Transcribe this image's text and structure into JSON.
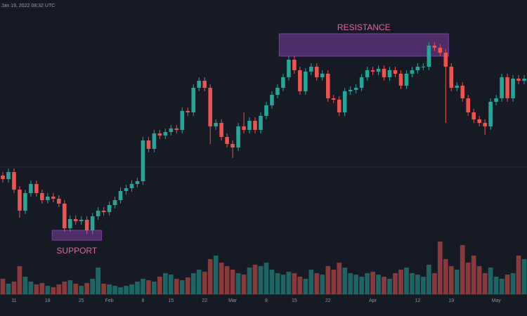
{
  "chart_data": {
    "type": "candlestick",
    "title": "Jan 19, 2022 08:32 UTC",
    "up_color": "#26a69a",
    "down_color": "#ef5350",
    "ylim": [
      0,
      450
    ],
    "volume_lim": [
      0,
      100
    ],
    "xlim": [
      -0.5,
      93.5
    ],
    "xticks": [
      {
        "value": 2,
        "label": "11"
      },
      {
        "value": 8,
        "label": "18"
      },
      {
        "value": 14,
        "label": "25"
      },
      {
        "value": 19,
        "label": "Feb"
      },
      {
        "value": 25,
        "label": "8"
      },
      {
        "value": 30,
        "label": "15"
      },
      {
        "value": 36,
        "label": "22"
      },
      {
        "value": 41,
        "label": "Mar"
      },
      {
        "value": 47,
        "label": "8"
      },
      {
        "value": 52,
        "label": "15"
      },
      {
        "value": 58,
        "label": "22"
      },
      {
        "value": 66,
        "label": "Apr"
      },
      {
        "value": 74,
        "label": "12"
      },
      {
        "value": 80,
        "label": "19"
      },
      {
        "value": 88,
        "label": "May"
      }
    ],
    "zones": [
      {
        "label": "RESISTANCE",
        "color": "#7b3fa0",
        "x": [
          49.3,
          79.5
        ],
        "y": [
          370,
          402
        ]
      },
      {
        "label": "SUPPORT",
        "color": "#7b3fa0",
        "x": [
          8.8,
          17.6
        ],
        "y": [
          108,
          122
        ]
      }
    ],
    "open": [
      200,
      195,
      205,
      180,
      150,
      175,
      188,
      175,
      165,
      170,
      167,
      160,
      125,
      138,
      135,
      137,
      122,
      142,
      150,
      148,
      158,
      165,
      178,
      182,
      188,
      192,
      250,
      238,
      260,
      257,
      262,
      267,
      265,
      292,
      290,
      325,
      335,
      325,
      270,
      275,
      255,
      245,
      240,
      270,
      265,
      278,
      265,
      285,
      300,
      315,
      325,
      340,
      365,
      350,
      320,
      348,
      355,
      340,
      345,
      310,
      308,
      290,
      320,
      322,
      325,
      340,
      350,
      348,
      352,
      340,
      350,
      345,
      328,
      345,
      350,
      355,
      355,
      385,
      382,
      375,
      355,
      325,
      328,
      310,
      290,
      280,
      275,
      270,
      305,
      310,
      340,
      310,
      338,
      335
    ],
    "high": [
      205,
      210,
      210,
      185,
      180,
      193,
      193,
      180,
      175,
      175,
      172,
      165,
      143,
      143,
      142,
      142,
      147,
      155,
      155,
      163,
      170,
      183,
      187,
      193,
      197,
      255,
      255,
      265,
      265,
      267,
      272,
      272,
      297,
      297,
      330,
      340,
      340,
      330,
      280,
      280,
      260,
      250,
      275,
      290,
      283,
      283,
      290,
      305,
      320,
      330,
      345,
      370,
      370,
      355,
      353,
      360,
      360,
      350,
      350,
      315,
      313,
      325,
      327,
      330,
      345,
      355,
      355,
      357,
      357,
      355,
      355,
      350,
      350,
      355,
      360,
      360,
      390,
      390,
      387,
      380,
      360,
      333,
      333,
      315,
      295,
      285,
      280,
      310,
      315,
      345,
      345,
      343,
      343,
      343
    ],
    "low": [
      190,
      190,
      175,
      140,
      145,
      170,
      170,
      160,
      160,
      162,
      155,
      120,
      120,
      130,
      130,
      117,
      117,
      137,
      143,
      143,
      153,
      160,
      173,
      177,
      183,
      187,
      233,
      233,
      252,
      252,
      257,
      260,
      260,
      285,
      285,
      320,
      320,
      245,
      265,
      250,
      240,
      225,
      235,
      260,
      260,
      260,
      260,
      280,
      295,
      310,
      320,
      335,
      345,
      315,
      315,
      343,
      335,
      335,
      305,
      303,
      285,
      285,
      315,
      317,
      320,
      335,
      343,
      343,
      335,
      335,
      340,
      323,
      323,
      340,
      345,
      350,
      350,
      377,
      370,
      275,
      320,
      320,
      305,
      285,
      275,
      270,
      258,
      265,
      300,
      305,
      305,
      305,
      330,
      330
    ],
    "close": [
      195,
      205,
      180,
      150,
      175,
      188,
      175,
      165,
      170,
      167,
      160,
      125,
      138,
      135,
      137,
      122,
      142,
      150,
      148,
      158,
      165,
      178,
      182,
      188,
      192,
      250,
      238,
      260,
      257,
      262,
      267,
      265,
      292,
      290,
      325,
      335,
      325,
      270,
      275,
      255,
      245,
      240,
      270,
      265,
      278,
      265,
      285,
      300,
      315,
      325,
      340,
      365,
      350,
      320,
      348,
      355,
      340,
      345,
      310,
      308,
      290,
      320,
      322,
      325,
      340,
      350,
      348,
      352,
      340,
      350,
      345,
      328,
      345,
      350,
      355,
      355,
      385,
      382,
      375,
      355,
      325,
      328,
      310,
      290,
      280,
      275,
      270,
      305,
      310,
      340,
      310,
      338,
      335,
      338
    ],
    "volume": [
      22,
      15,
      18,
      40,
      25,
      18,
      14,
      16,
      12,
      10,
      14,
      18,
      20,
      15,
      12,
      16,
      22,
      38,
      15,
      14,
      12,
      10,
      12,
      14,
      18,
      22,
      20,
      18,
      25,
      30,
      28,
      22,
      20,
      24,
      30,
      35,
      32,
      50,
      55,
      45,
      40,
      35,
      30,
      28,
      38,
      42,
      40,
      45,
      35,
      30,
      28,
      32,
      30,
      25,
      22,
      35,
      30,
      28,
      40,
      35,
      45,
      38,
      30,
      28,
      25,
      30,
      32,
      28,
      25,
      22,
      30,
      35,
      38,
      30,
      28,
      25,
      42,
      30,
      75,
      50,
      40,
      35,
      70,
      45,
      55,
      40,
      30,
      38,
      25,
      22,
      28,
      30,
      55,
      50
    ]
  }
}
